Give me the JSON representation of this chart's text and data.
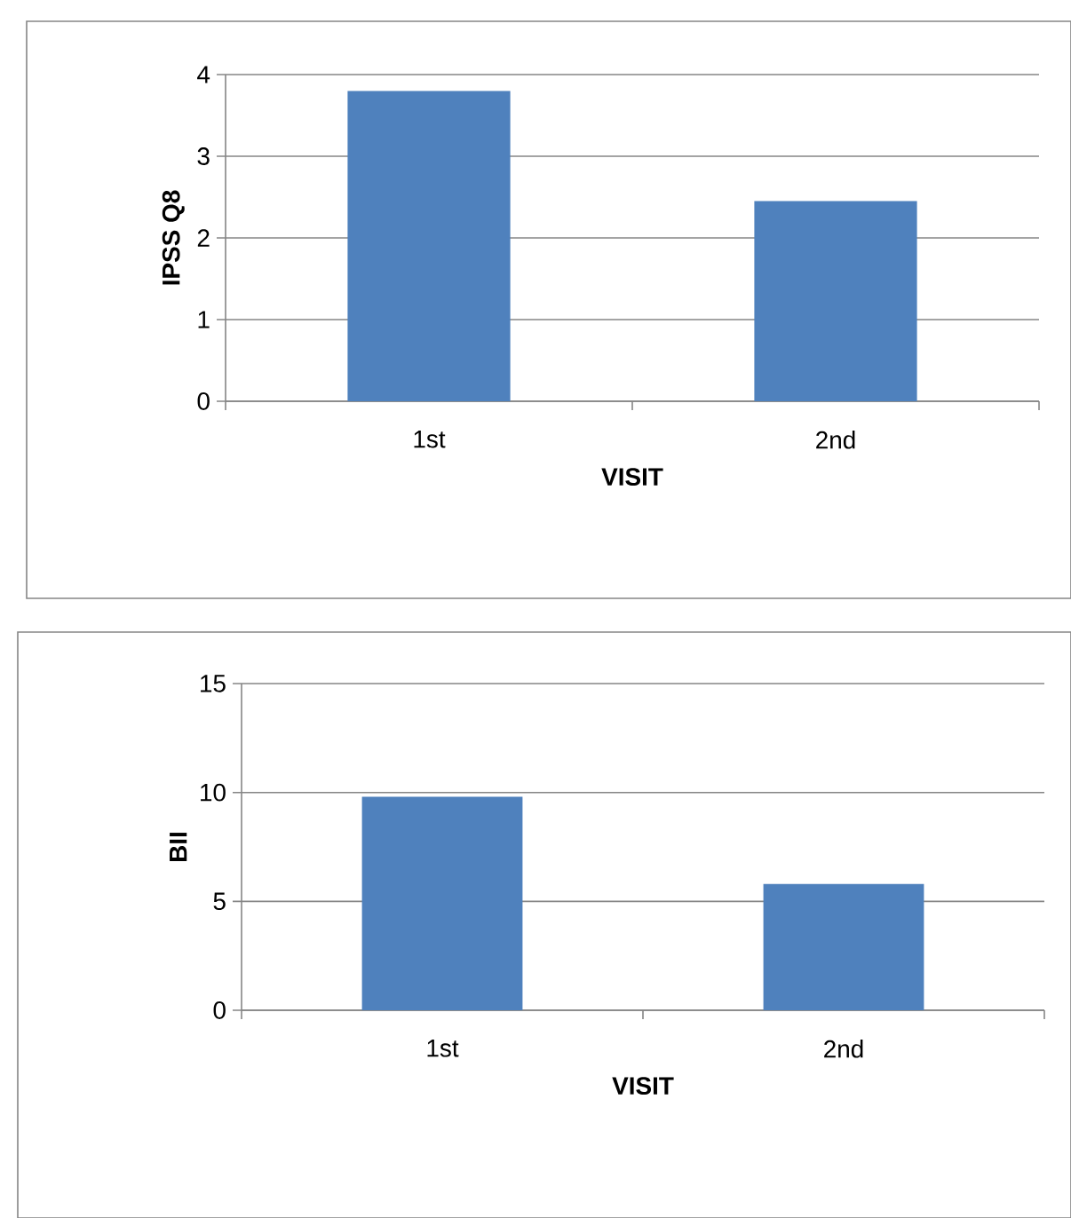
{
  "chart_data": [
    {
      "type": "bar",
      "ylabel": "IPSS Q8",
      "xlabel": "VISIT",
      "categories": [
        "1st",
        "2nd"
      ],
      "values": [
        3.8,
        2.45
      ],
      "color": "#4f81bd",
      "ylim": [
        0,
        4
      ],
      "yticks": [
        0,
        1,
        2,
        3,
        4
      ],
      "grid": "y"
    },
    {
      "type": "bar",
      "ylabel": "BII",
      "xlabel": "VISIT",
      "categories": [
        "1st",
        "2nd"
      ],
      "values": [
        9.8,
        5.8
      ],
      "color": "#4f81bd",
      "ylim": [
        0,
        15
      ],
      "yticks": [
        0,
        5,
        10,
        15
      ],
      "grid": "y"
    }
  ]
}
